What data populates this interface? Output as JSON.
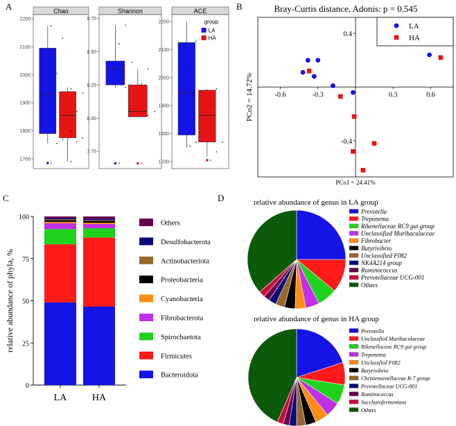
{
  "panel_letters": [
    "A",
    "B",
    "C",
    "D"
  ],
  "colors": {
    "LA": "#1414e6",
    "HA": "#e61414"
  },
  "chart_data": [
    {
      "type": "box",
      "panel": "A",
      "legend_title": "group",
      "groups": [
        "LA",
        "HA"
      ],
      "facets": [
        {
          "name": "Chao",
          "ticks": [
            1700,
            1800,
            1900,
            2000,
            2100,
            2200
          ],
          "ylim": [
            1665,
            2215
          ],
          "boxes": {
            "LA": {
              "min": 1755,
              "q1": 1790,
              "median": 1930,
              "q3": 2095,
              "max": 2175,
              "outliers": [
                1685
              ]
            },
            "HA": {
              "min": 1690,
              "q1": 1775,
              "median": 1855,
              "q3": 1940,
              "max": 1955,
              "outliers": []
            }
          },
          "points": {
            "LA": [
              1685,
              1755,
              1770,
              1905,
              2005,
              2130,
              2175
            ],
            "HA": [
              1690,
              1760,
              1775,
              1800,
              1870,
              1935,
              1950
            ]
          }
        },
        {
          "name": "Shannon",
          "ticks": [
            7.75,
            8.0,
            8.25,
            8.5,
            8.75
          ],
          "ylim": [
            7.62,
            8.78
          ],
          "boxes": {
            "LA": {
              "min": 8.23,
              "q1": 8.25,
              "median": 8.37,
              "q3": 8.43,
              "max": 8.7,
              "outliers": [
                7.66
              ]
            },
            "HA": {
              "min": 8.01,
              "q1": 8.01,
              "median": 8.05,
              "q3": 8.25,
              "max": 8.37,
              "outliers": [
                7.66
              ]
            }
          },
          "points": {
            "LA": [
              7.66,
              8.23,
              8.42,
              8.56,
              8.7
            ],
            "HA": [
              7.66,
              8.02,
              8.05,
              8.26,
              8.37
            ]
          }
        },
        {
          "name": "ACE",
          "ticks": [
            1700,
            1800,
            1900,
            2000,
            2100,
            2200
          ],
          "ylim": [
            1675,
            2225
          ],
          "boxes": {
            "LA": {
              "min": 1750,
              "q1": 1795,
              "median": 1945,
              "q3": 2125,
              "max": 2200,
              "outliers": []
            },
            "HA": {
              "min": 1720,
              "q1": 1770,
              "median": 1865,
              "q3": 1955,
              "max": 1960,
              "outliers": [
                1705
              ]
            }
          },
          "points": {
            "LA": [
              1755,
              1770,
              1950,
              2030,
              2130
            ],
            "HA": [
              1705,
              1735,
              1770,
              1905,
              1960
            ]
          }
        }
      ]
    },
    {
      "type": "scatter",
      "panel": "B",
      "title": "Bray-Curtis distance, Adonis: p = 0.545",
      "xlabel": "PCo1 = 24.41%",
      "ylabel": "PCo2 = 14.72%",
      "xlim": [
        -0.78,
        0.78
      ],
      "ylim": [
        -0.67,
        0.52
      ],
      "xticks": [
        -0.6,
        -0.3,
        0.3,
        0.6
      ],
      "yticks": [
        0.4,
        -0.4
      ],
      "legend": [
        "LA",
        "HA"
      ],
      "series": [
        {
          "name": "LA",
          "marker": "circle",
          "points": [
            [
              -0.38,
              0.2
            ],
            [
              -0.3,
              0.2
            ],
            [
              -0.33,
              0.08
            ],
            [
              -0.42,
              0.11
            ],
            [
              -0.18,
              0.01
            ],
            [
              -0.02,
              -0.04
            ],
            [
              0.59,
              0.24
            ]
          ]
        },
        {
          "name": "HA",
          "marker": "square",
          "points": [
            [
              -0.37,
              0.12
            ],
            [
              -0.12,
              -0.07
            ],
            [
              -0.01,
              -0.22
            ],
            [
              0.68,
              0.22
            ],
            [
              0.15,
              -0.42
            ],
            [
              -0.02,
              -0.48
            ],
            [
              0.06,
              -0.62
            ]
          ]
        }
      ]
    },
    {
      "type": "bar",
      "stacked": true,
      "panel": "C",
      "ylabel": "relative abundance of phyla, %",
      "ylim": [
        0,
        100
      ],
      "yticks": [
        0,
        25,
        50,
        75,
        100
      ],
      "categories": [
        "LA",
        "HA"
      ],
      "series": [
        {
          "name": "Bacteroidota",
          "color": "#1414e6",
          "values": [
            49.0,
            46.5
          ]
        },
        {
          "name": "Firmicutes",
          "color": "#ff1a1a",
          "values": [
            34.5,
            41.0
          ]
        },
        {
          "name": "Spirochaetota",
          "color": "#1ed21e",
          "values": [
            9.0,
            5.5
          ]
        },
        {
          "name": "Fibrobacterota",
          "color": "#bf30e6",
          "values": [
            3.5,
            2.5
          ]
        },
        {
          "name": "Cyanobacteria",
          "color": "#ff8c14",
          "values": [
            0.8,
            0.8
          ]
        },
        {
          "name": "Proteobacteria",
          "color": "#000000",
          "values": [
            1.0,
            1.0
          ]
        },
        {
          "name": "Actinobacteriota",
          "color": "#99662b",
          "values": [
            0.5,
            0.5
          ]
        },
        {
          "name": "Desulfobacterota",
          "color": "#0a0a7a",
          "values": [
            0.7,
            0.7
          ]
        },
        {
          "name": "Others",
          "color": "#66004d",
          "values": [
            1.0,
            1.5
          ]
        }
      ],
      "legend_order": [
        "Others",
        "Desulfobacterota",
        "Actinobacteriota",
        "Proteobacteria",
        "Cyanobacteria",
        "Fibrobacterota",
        "Spirochaetota",
        "Firmicutes",
        "Bacteroidota"
      ]
    },
    {
      "type": "pie",
      "panel": "D",
      "title": "relative abundance of genus in LA group",
      "slices": [
        {
          "label": "Prevotella",
          "value": 25.0,
          "color": "#1414e6"
        },
        {
          "label": "Treponema",
          "value": 11.0,
          "color": "#ff1a1a"
        },
        {
          "label": "Rikenellaceae RC9 gut group",
          "value": 6.5,
          "color": "#1ed21e"
        },
        {
          "label": "Unclassified Muribaculaceae",
          "value": 4.5,
          "color": "#bf30e6"
        },
        {
          "label": "Fibrobacter",
          "value": 3.5,
          "color": "#ff8c14"
        },
        {
          "label": "Butyrivibrio",
          "value": 3.5,
          "color": "#000000"
        },
        {
          "label": "Unclassified F082",
          "value": 3.0,
          "color": "#99662b"
        },
        {
          "label": "NK4A214 group",
          "value": 2.5,
          "color": "#0a0a7a"
        },
        {
          "label": "Ruminococcus",
          "value": 2.0,
          "color": "#66004d"
        },
        {
          "label": "Prevotellaceae UCG-001",
          "value": 2.0,
          "color": "#cc0a3a"
        },
        {
          "label": "Others",
          "value": 36.5,
          "color": "#0a5a0a"
        }
      ]
    },
    {
      "type": "pie",
      "panel": "D",
      "title": "relative abundance of genus in HA group",
      "slices": [
        {
          "label": "Prevotella",
          "value": 20.0,
          "color": "#1414e6"
        },
        {
          "label": "Unclassfied Muribaculaceae",
          "value": 7.5,
          "color": "#ff1a1a"
        },
        {
          "label": "Rikenellaceae RC9 gut group",
          "value": 6.5,
          "color": "#1ed21e"
        },
        {
          "label": "Treponema",
          "value": 5.0,
          "color": "#bf30e6"
        },
        {
          "label": "Unclassfied F082",
          "value": 4.5,
          "color": "#ff8c14"
        },
        {
          "label": "Butyrivibrio",
          "value": 3.5,
          "color": "#000000"
        },
        {
          "label": "Christensenellaceae R-7 group",
          "value": 3.0,
          "color": "#99662b"
        },
        {
          "label": "Prevotellaceae UCG-001",
          "value": 2.5,
          "color": "#0a0a7a"
        },
        {
          "label": "Ruminococcus",
          "value": 2.0,
          "color": "#66004d"
        },
        {
          "label": "Saccharofermentans",
          "value": 2.0,
          "color": "#cc0a3a"
        },
        {
          "label": "Others",
          "value": 43.5,
          "color": "#0a5a0a"
        }
      ]
    }
  ]
}
